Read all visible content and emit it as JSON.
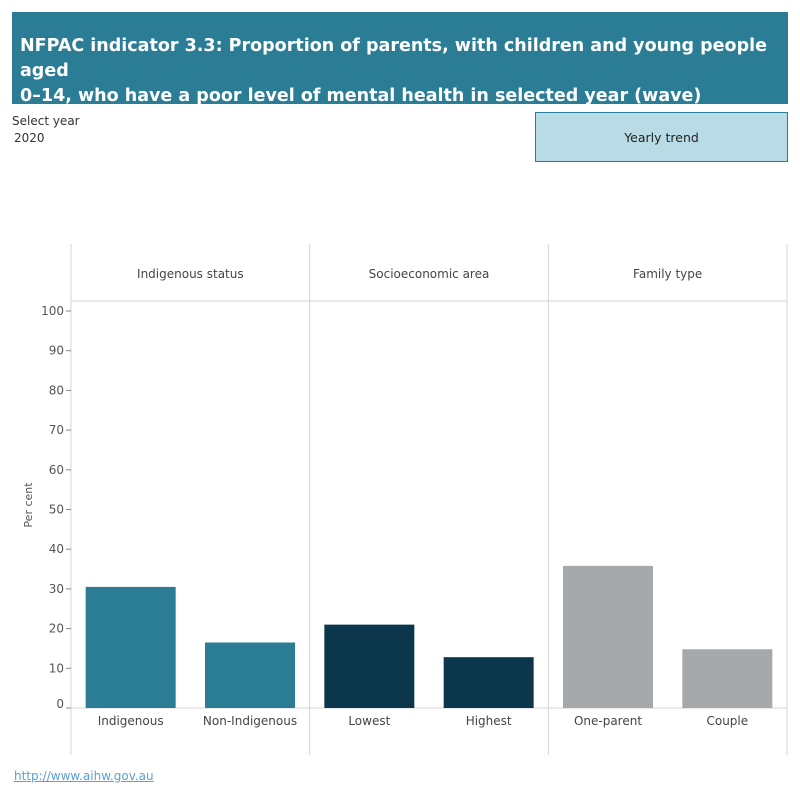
{
  "header": {
    "title_line1": "NFPAC indicator 3.3: Proportion of parents, with children and young people aged",
    "title_line2": "0–14, who have a poor level of mental health in selected year (wave)"
  },
  "filter": {
    "label": "Select year",
    "value": "2020"
  },
  "trend_button": {
    "label": "Yearly trend"
  },
  "footer": {
    "link_text": "http://www.aihw.gov.au"
  },
  "chart_data": {
    "type": "bar",
    "ylabel": "Per cent",
    "ylim": [
      0,
      100
    ],
    "yticks": [
      0,
      10,
      20,
      30,
      40,
      50,
      60,
      70,
      80,
      90,
      100
    ],
    "grid": false,
    "panels": [
      {
        "name": "Indigenous status",
        "color": "#2b7d96",
        "categories": [
          "Indigenous",
          "Non-Indigenous"
        ],
        "values": [
          30.5,
          16.5
        ]
      },
      {
        "name": "Socioeconomic area",
        "color": "#0c364c",
        "categories": [
          "Lowest",
          "Highest"
        ],
        "values": [
          21,
          12.8
        ]
      },
      {
        "name": "Family type",
        "color": "#a5a9ab",
        "categories": [
          "One-parent",
          "Couple"
        ],
        "values": [
          35.8,
          14.8
        ]
      }
    ]
  }
}
